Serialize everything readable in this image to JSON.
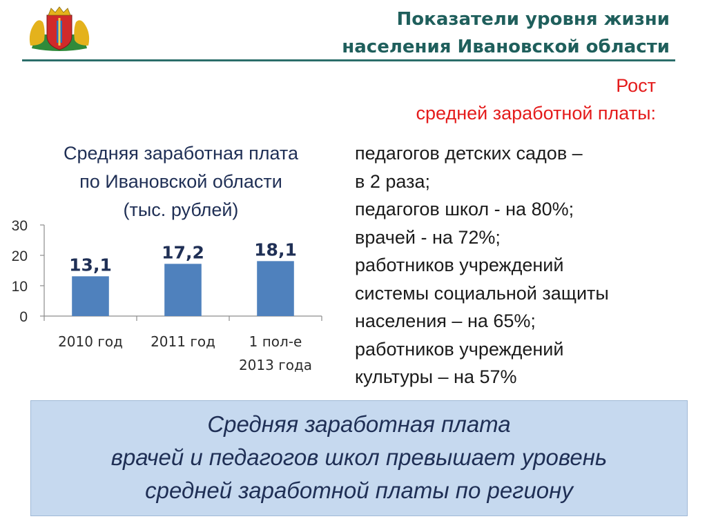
{
  "header": {
    "title_lines": [
      "Показатели уровня жизни",
      "населения Ивановской области"
    ]
  },
  "growth": {
    "heading_lines": [
      "Рост",
      "средней заработной платы:"
    ],
    "items": [
      "педагогов детских садов –",
      "в 2 раза;",
      "педагогов школ  - на 80%;",
      "врачей  - на 72%;",
      "работников  учреждений",
      "системы социальной защиты",
      "населения – на 65%;",
      "работников учреждений",
      "культуры – на 57%"
    ]
  },
  "chart_title_lines": [
    "Средняя заработная плата",
    "по Ивановской области",
    "(тыс. рублей)"
  ],
  "chart_data": {
    "type": "bar",
    "title": "Средняя заработная плата по Ивановской области (тыс. рублей)",
    "categories": [
      [
        "2010 год"
      ],
      [
        "2011 год"
      ],
      [
        "1 пол-е",
        "2013 года"
      ]
    ],
    "values": [
      13.1,
      17.2,
      18.1
    ],
    "value_labels": [
      "13,1",
      "17,2",
      "18,1"
    ],
    "yticks": [
      "0",
      "10",
      "20",
      "30"
    ],
    "ylim": [
      0,
      30
    ],
    "grid": false,
    "bar_color": "#4f81bd"
  },
  "banner": {
    "lines": [
      "Средняя заработная плата",
      "врачей и педагогов школ превышает уровень",
      "средней заработной платы по региону"
    ]
  },
  "colors": {
    "title": "#1f5f5c",
    "accent_red": "#e41b1b",
    "banner_bg": "#c6d9ef"
  }
}
